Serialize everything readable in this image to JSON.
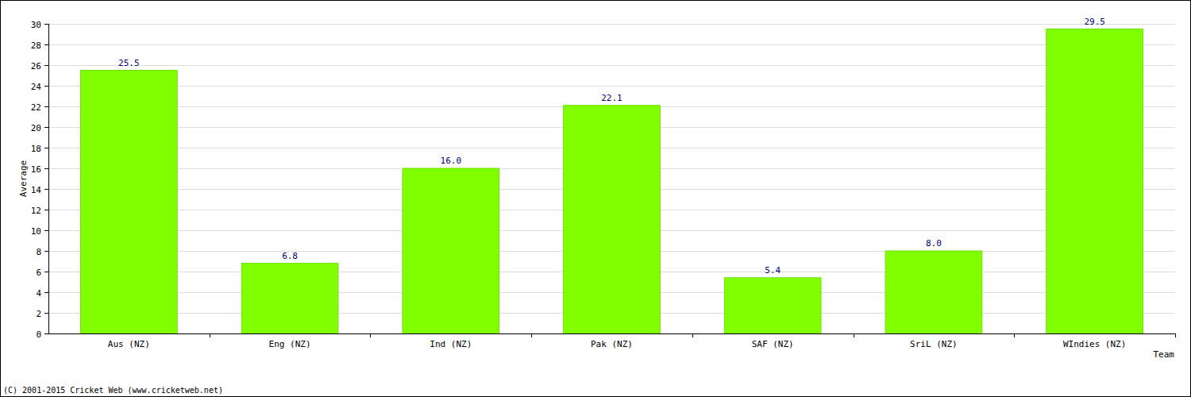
{
  "chart_data": {
    "type": "bar",
    "x_label": "Team",
    "y_label": "Average",
    "annotations": [
      "(C) 2001-2015 Cricket Web (www.cricketweb.net)"
    ],
    "categories": [
      "Aus (NZ)",
      "Eng (NZ)",
      "Ind (NZ)",
      "Pak (NZ)",
      "SAF (NZ)",
      "SriL (NZ)",
      "WIndies (NZ)"
    ],
    "values": [
      25.5,
      6.8,
      16,
      22.1,
      5.4,
      8,
      29.5
    ],
    "value_labels": [
      "25.5",
      "6.8",
      "16.0",
      "22.1",
      "5.4",
      "8.0",
      "29.5"
    ],
    "color": "#80ff00",
    "ylim": [
      0,
      30
    ],
    "yticks": [
      0,
      2,
      4,
      6,
      8,
      10,
      12,
      14,
      16,
      18,
      20,
      22,
      24,
      26,
      28,
      30
    ],
    "grid": true,
    "data_labels": true
  }
}
